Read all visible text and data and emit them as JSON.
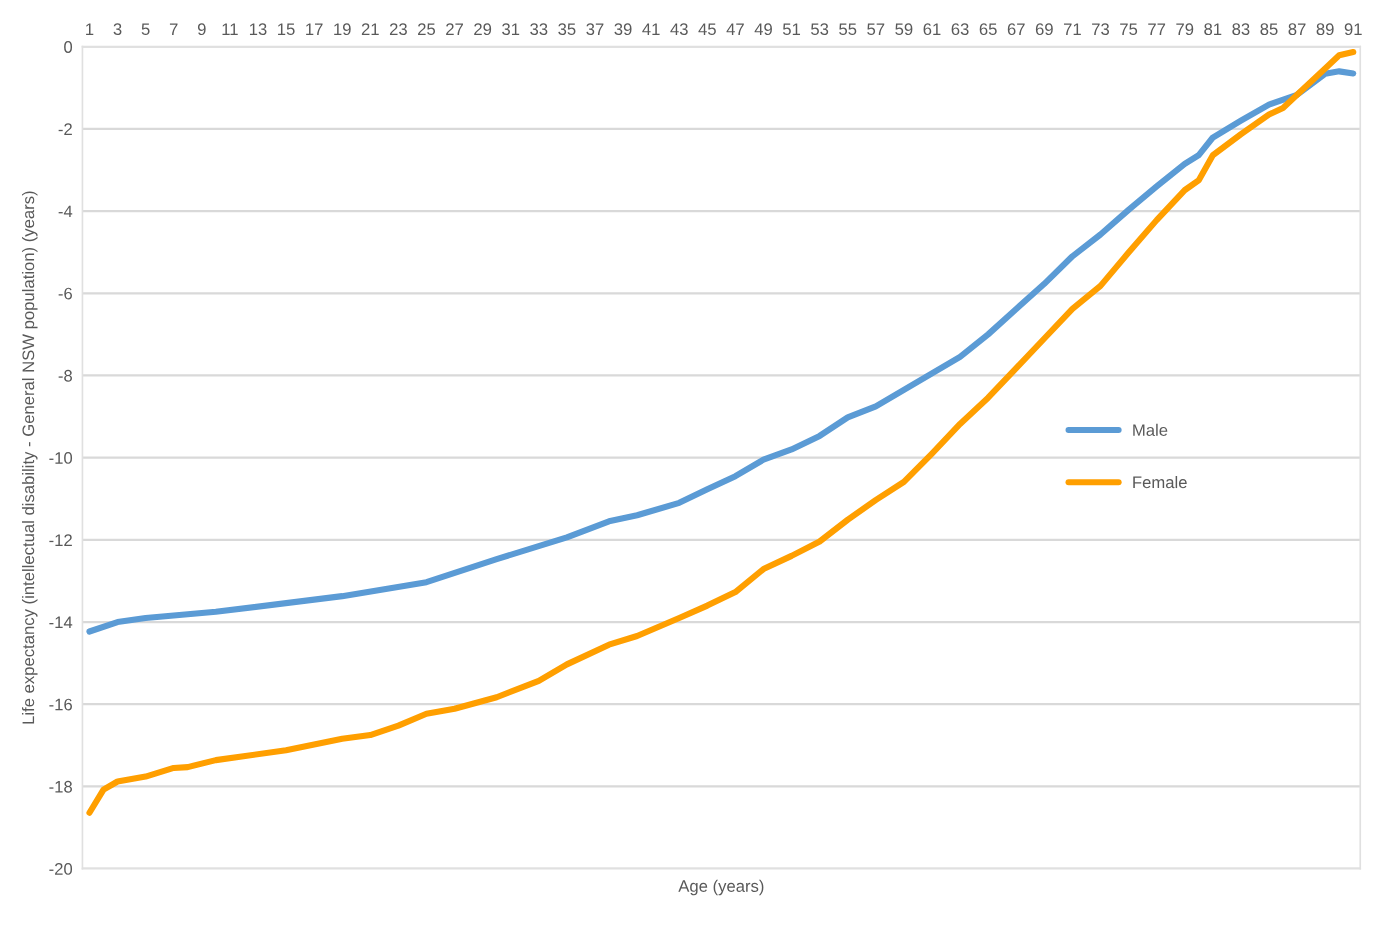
{
  "chart_data": {
    "type": "line",
    "xlabel": "Age (years)",
    "ylabel": "Life expectancy (intellectual disability - General NSW population) (years)",
    "xlim": [
      0.5,
      91.5
    ],
    "xticks": [
      1,
      3,
      5,
      7,
      9,
      11,
      13,
      15,
      17,
      19,
      21,
      23,
      25,
      27,
      29,
      31,
      33,
      35,
      37,
      39,
      41,
      43,
      45,
      47,
      49,
      51,
      53,
      55,
      57,
      59,
      61,
      63,
      65,
      67,
      69,
      71,
      73,
      75,
      77,
      79,
      81,
      83,
      85,
      87,
      89,
      91
    ],
    "ylim": [
      -20,
      0
    ],
    "yticks": [
      -20,
      -18,
      -16,
      -14,
      -12,
      -10,
      -8,
      -6,
      -4,
      -2,
      0
    ],
    "grid": "y",
    "legend": "right",
    "marker": "none",
    "line_style": "solid",
    "series": [
      {
        "name": "Male",
        "color": "#5b9bd5",
        "x": [
          1,
          3,
          5,
          10,
          19,
          25,
          30,
          35,
          38,
          40,
          43,
          45,
          47,
          49,
          51,
          53,
          55,
          57,
          59,
          61,
          63,
          65,
          67,
          69,
          71,
          73,
          75,
          77,
          79,
          80,
          81,
          83,
          85,
          87,
          89,
          90,
          91
        ],
        "values": [
          -14.23,
          -14.0,
          -13.9,
          -13.75,
          -13.37,
          -13.03,
          -12.47,
          -11.94,
          -11.55,
          -11.4,
          -11.1,
          -10.77,
          -10.45,
          -10.05,
          -9.8,
          -9.47,
          -9.02,
          -8.75,
          -8.35,
          -7.95,
          -7.55,
          -7.0,
          -6.38,
          -5.77,
          -5.1,
          -4.57,
          -3.97,
          -3.4,
          -2.85,
          -2.64,
          -2.21,
          -1.8,
          -1.41,
          -1.17,
          -0.66,
          -0.6,
          -0.65
        ]
      },
      {
        "name": "Female",
        "color": "#ff9f00",
        "x": [
          1,
          2,
          3,
          5,
          7,
          8,
          10,
          15,
          19,
          21,
          23,
          25,
          27,
          30,
          33,
          35,
          38,
          40,
          43,
          45,
          47,
          49,
          51,
          53,
          55,
          57,
          59,
          61,
          63,
          65,
          67,
          69,
          71,
          73,
          75,
          77,
          79,
          80,
          81,
          83,
          85,
          86,
          87,
          89,
          90,
          91
        ],
        "values": [
          -18.64,
          -18.08,
          -17.88,
          -17.76,
          -17.55,
          -17.53,
          -17.36,
          -17.12,
          -16.84,
          -16.75,
          -16.52,
          -16.23,
          -16.11,
          -15.83,
          -15.43,
          -15.03,
          -14.55,
          -14.34,
          -13.9,
          -13.6,
          -13.27,
          -12.71,
          -12.39,
          -12.04,
          -11.51,
          -11.03,
          -10.59,
          -9.9,
          -9.18,
          -8.54,
          -7.82,
          -7.1,
          -6.38,
          -5.82,
          -5.01,
          -4.22,
          -3.49,
          -3.25,
          -2.64,
          -2.13,
          -1.65,
          -1.49,
          -1.17,
          -0.53,
          -0.21,
          -0.13
        ]
      }
    ]
  }
}
